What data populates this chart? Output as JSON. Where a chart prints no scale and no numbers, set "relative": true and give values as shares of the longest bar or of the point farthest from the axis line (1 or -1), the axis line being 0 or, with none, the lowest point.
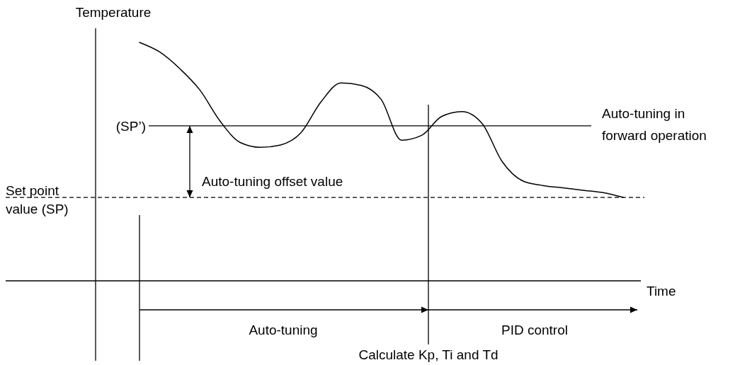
{
  "chart_data": {
    "type": "line",
    "relative": true,
    "xlabel": "Time",
    "ylabel": "Temperature",
    "categories": [
      null,
      null,
      null,
      null,
      null,
      null,
      null,
      null,
      null,
      null,
      null,
      null,
      null,
      null,
      null,
      null,
      null,
      null,
      null,
      null,
      null,
      null,
      null,
      null,
      null
    ],
    "series": [
      {
        "color": "#000000",
        "values": [
          1.0,
          0.96,
          0.89,
          0.8,
          0.67,
          0.58,
          0.56,
          0.57,
          0.62,
          0.75,
          0.83,
          0.82,
          0.76,
          0.59,
          0.61,
          0.69,
          0.71,
          0.66,
          0.5,
          0.42,
          0.4,
          0.39,
          0.38,
          0.37,
          0.35
        ]
      }
    ],
    "ref_lines": [
      {
        "axis": "y",
        "value": 0.65,
        "label": "(SP’)",
        "line_style": "solid"
      },
      {
        "axis": "y",
        "value": 0.35,
        "label": "Set point value (SP)",
        "line_style": "dashed"
      }
    ],
    "annotations": [
      "Auto-tuning offset value",
      "Auto-tuning in forward operation",
      "Auto-tuning",
      "PID control",
      "Calculate Kp, Ti and Td"
    ]
  }
}
